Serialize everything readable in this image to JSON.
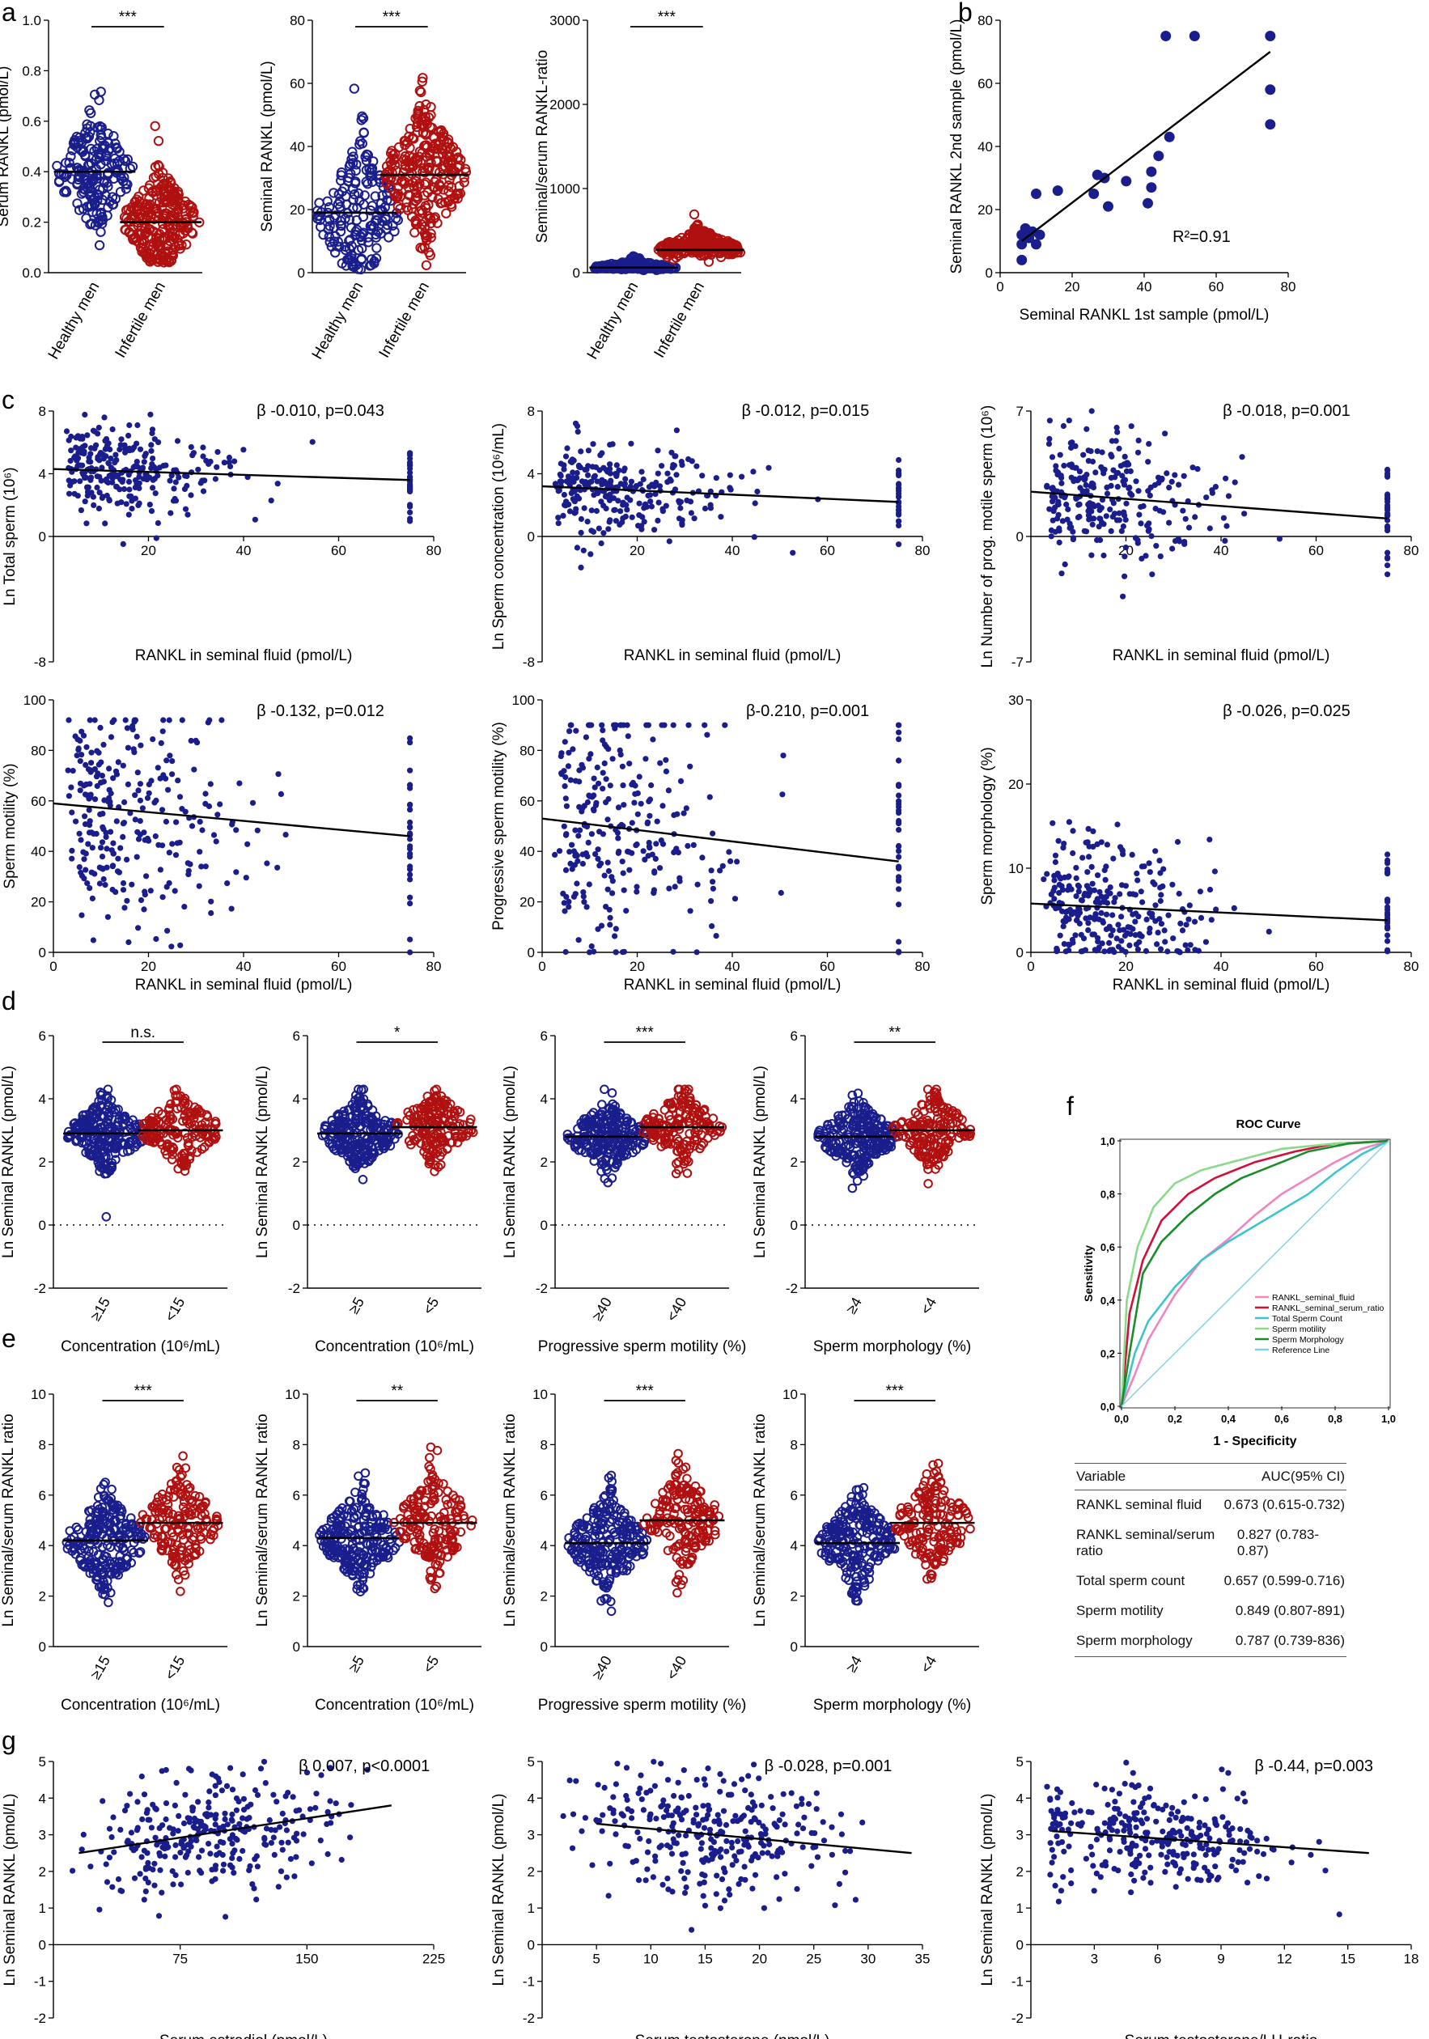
{
  "colors": {
    "healthy": "#1a1e8c",
    "infertile": "#b01010",
    "fit": "#000000",
    "roc": [
      "#ee86c0",
      "#d0103a",
      "#3cc6cc",
      "#8ad98c",
      "#1a8c2a",
      "#7fd0e0"
    ]
  },
  "panel_labels": [
    "a",
    "b",
    "c",
    "d",
    "e",
    "f",
    "g"
  ],
  "chart_data": [
    {
      "id": "a1",
      "type": "scatter",
      "subtype": "dot-plot",
      "ylabel": "Serum RANKL (pmol/L)",
      "ylim": [
        0,
        1
      ],
      "yticks": [
        "0.0",
        "0.2",
        "0.4",
        "0.6",
        "0.8",
        "1.0"
      ],
      "categories": [
        "Healthy men",
        "Infertile men"
      ],
      "medians": [
        0.4,
        0.2
      ],
      "significance": "***",
      "n": [
        190,
        250
      ]
    },
    {
      "id": "a2",
      "type": "scatter",
      "subtype": "dot-plot",
      "ylabel": "Seminal RANKL (pmol/L)",
      "ylim": [
        0,
        80
      ],
      "yticks": [
        "0",
        "20",
        "40",
        "60",
        "80"
      ],
      "categories": [
        "Healthy men",
        "Infertile men"
      ],
      "medians": [
        19,
        31
      ],
      "significance": "***",
      "n": [
        190,
        250
      ]
    },
    {
      "id": "a3",
      "type": "scatter",
      "subtype": "dot-plot",
      "ylabel": "Seminal/serum RANKL-ratio",
      "ylim": [
        0,
        3000
      ],
      "yticks": [
        "0",
        "1000",
        "2000",
        "3000"
      ],
      "categories": [
        "Healthy men",
        "Infertile men"
      ],
      "medians": [
        60,
        270
      ],
      "significance": "***",
      "n": [
        190,
        250
      ]
    },
    {
      "id": "b",
      "type": "scatter",
      "xlabel": "Seminal RANKL 1st sample (pmol/L)",
      "ylabel": "Seminal RANKL 2nd sample (pmol/L)",
      "xlim": [
        0,
        80
      ],
      "ylim": [
        0,
        80
      ],
      "xticks": [
        "0",
        "20",
        "40",
        "60",
        "80"
      ],
      "yticks": [
        "0",
        "20",
        "40",
        "60",
        "80"
      ],
      "annotation": "R²=0.91",
      "fit": [
        [
          6,
          10
        ],
        [
          75,
          70
        ]
      ],
      "points": [
        [
          6,
          4
        ],
        [
          6,
          9
        ],
        [
          6,
          12
        ],
        [
          7,
          14
        ],
        [
          8,
          11
        ],
        [
          9,
          13
        ],
        [
          10,
          9
        ],
        [
          10,
          25
        ],
        [
          11,
          12
        ],
        [
          16,
          26
        ],
        [
          26,
          25
        ],
        [
          27,
          31
        ],
        [
          29,
          30
        ],
        [
          30,
          21
        ],
        [
          35,
          29
        ],
        [
          41,
          22
        ],
        [
          42,
          27
        ],
        [
          42,
          32
        ],
        [
          44,
          37
        ],
        [
          46,
          75
        ],
        [
          47,
          43
        ],
        [
          54,
          75
        ],
        [
          75,
          75
        ],
        [
          75,
          58
        ],
        [
          75,
          47
        ]
      ]
    },
    {
      "id": "c1",
      "type": "scatter",
      "xlabel": "RANKL in seminal fluid (pmol/L)",
      "ylabel": "Ln Total sperm (10⁶)",
      "xlim": [
        0,
        80
      ],
      "ylim": [
        -8,
        8
      ],
      "xticks": [
        "20",
        "40",
        "60",
        "80"
      ],
      "yticks": [
        "-8",
        "0",
        "4",
        "8"
      ],
      "annotation": "β -0.010, p=0.043",
      "fit": [
        [
          0,
          4.3
        ],
        [
          75,
          3.6
        ]
      ],
      "center": 4.5,
      "spread": 1.4,
      "n": 300
    },
    {
      "id": "c2",
      "type": "scatter",
      "xlabel": "RANKL in seminal fluid (pmol/L)",
      "ylabel": "Ln Sperm concentration (10⁶/mL)",
      "xlim": [
        0,
        80
      ],
      "ylim": [
        -8,
        8
      ],
      "xticks": [
        "20",
        "40",
        "60",
        "80"
      ],
      "yticks": [
        "-8",
        "0",
        "4",
        "8"
      ],
      "annotation": "β -0.012, p=0.015",
      "fit": [
        [
          0,
          3.2
        ],
        [
          75,
          2.2
        ]
      ],
      "center": 3.0,
      "spread": 1.5,
      "n": 300
    },
    {
      "id": "c3",
      "type": "scatter",
      "xlabel": "RANKL in seminal fluid (pmol/L)",
      "ylabel": "Ln Number of prog. motile sperm (10⁶)",
      "xlim": [
        0,
        80
      ],
      "ylim": [
        -7,
        7
      ],
      "xticks": [
        "20",
        "40",
        "60",
        "80"
      ],
      "yticks": [
        "-7",
        "0",
        "7"
      ],
      "annotation": "β -0.018, p=0.001",
      "fit": [
        [
          0,
          2.5
        ],
        [
          75,
          1.0
        ]
      ],
      "center": 2.2,
      "spread": 1.8,
      "n": 300
    },
    {
      "id": "c4",
      "type": "scatter",
      "xlabel": "RANKL in seminal fluid (pmol/L)",
      "ylabel": "Sperm motility (%)",
      "xlim": [
        0,
        80
      ],
      "ylim": [
        0,
        100
      ],
      "xticks": [
        "0",
        "20",
        "40",
        "60",
        "80"
      ],
      "yticks": [
        "0",
        "20",
        "40",
        "60",
        "80",
        "100"
      ],
      "annotation": "β -0.132, p=0.012",
      "fit": [
        [
          0,
          59
        ],
        [
          75,
          46
        ]
      ],
      "center": 55,
      "spread": 22,
      "n": 300
    },
    {
      "id": "c5",
      "type": "scatter",
      "xlabel": "RANKL in seminal fluid (pmol/L)",
      "ylabel": "Progressive sperm motility (%)",
      "xlim": [
        0,
        80
      ],
      "ylim": [
        0,
        100
      ],
      "xticks": [
        "0",
        "20",
        "40",
        "60",
        "80"
      ],
      "yticks": [
        "0",
        "20",
        "40",
        "60",
        "80",
        "100"
      ],
      "annotation": "β-0.210, p=0.001",
      "fit": [
        [
          0,
          53
        ],
        [
          75,
          36
        ]
      ],
      "center": 45,
      "spread": 24,
      "n": 300
    },
    {
      "id": "c6",
      "type": "scatter",
      "xlabel": "RANKL in seminal fluid (pmol/L)",
      "ylabel": "Sperm morphology (%)",
      "xlim": [
        0,
        80
      ],
      "ylim": [
        0,
        30
      ],
      "xticks": [
        "0",
        "20",
        "40",
        "60",
        "80"
      ],
      "yticks": [
        "0",
        "10",
        "20",
        "30"
      ],
      "annotation": "β -0.026, p=0.025",
      "fit": [
        [
          0,
          5.8
        ],
        [
          75,
          3.8
        ]
      ],
      "center": 5,
      "spread": 4,
      "n": 300
    },
    {
      "id": "d1",
      "type": "scatter",
      "subtype": "dot-plot",
      "ylabel": "Ln Seminal RANKL (pmol/L)",
      "ylim": [
        -2,
        6
      ],
      "yticks": [
        "-2",
        "0",
        "2",
        "4",
        "6"
      ],
      "categories": [
        "≥15",
        "<15"
      ],
      "xlabel": "Concentration (10⁶/mL)",
      "medians": [
        2.9,
        3.0
      ],
      "significance": "n.s."
    },
    {
      "id": "d2",
      "type": "scatter",
      "subtype": "dot-plot",
      "ylabel": "Ln Seminal RANKL (pmol/L)",
      "ylim": [
        -2,
        6
      ],
      "yticks": [
        "-2",
        "0",
        "2",
        "4",
        "6"
      ],
      "categories": [
        "≥5",
        "<5"
      ],
      "xlabel": "Concentration (10⁶/mL)",
      "medians": [
        2.9,
        3.1
      ],
      "significance": "*"
    },
    {
      "id": "d3",
      "type": "scatter",
      "subtype": "dot-plot",
      "ylabel": "Ln Seminal RANKL (pmol/L)",
      "ylim": [
        -2,
        6
      ],
      "yticks": [
        "-2",
        "0",
        "2",
        "4",
        "6"
      ],
      "categories": [
        "≥40",
        "<40"
      ],
      "xlabel": "Progressive sperm motility (%)",
      "medians": [
        2.8,
        3.1
      ],
      "significance": "***"
    },
    {
      "id": "d4",
      "type": "scatter",
      "subtype": "dot-plot",
      "ylabel": "Ln Seminal RANKL (pmol/L)",
      "ylim": [
        -2,
        6
      ],
      "yticks": [
        "-2",
        "0",
        "2",
        "4",
        "6"
      ],
      "categories": [
        "≥4",
        "<4"
      ],
      "xlabel": "Sperm morphology (%)",
      "medians": [
        2.8,
        3.0
      ],
      "significance": "**"
    },
    {
      "id": "e1",
      "type": "scatter",
      "subtype": "dot-plot",
      "ylabel": "Ln Seminal/serum RANKL ratio",
      "ylim": [
        0,
        10
      ],
      "yticks": [
        "0",
        "2",
        "4",
        "6",
        "8",
        "10"
      ],
      "categories": [
        "≥15",
        "<15"
      ],
      "xlabel": "Concentration (10⁶/mL)",
      "medians": [
        4.2,
        4.9
      ],
      "significance": "***"
    },
    {
      "id": "e2",
      "type": "scatter",
      "subtype": "dot-plot",
      "ylabel": "Ln Seminal/serum RANKL ratio",
      "ylim": [
        0,
        10
      ],
      "yticks": [
        "0",
        "2",
        "4",
        "6",
        "8",
        "10"
      ],
      "categories": [
        "≥5",
        "<5"
      ],
      "xlabel": "Concentration (10⁶/mL)",
      "medians": [
        4.3,
        4.9
      ],
      "significance": "**"
    },
    {
      "id": "e3",
      "type": "scatter",
      "subtype": "dot-plot",
      "ylabel": "Ln Seminal/serum RANKL ratio",
      "ylim": [
        0,
        10
      ],
      "yticks": [
        "0",
        "2",
        "4",
        "6",
        "8",
        "10"
      ],
      "categories": [
        "≥40",
        "<40"
      ],
      "xlabel": "Progressive sperm motility (%)",
      "medians": [
        4.1,
        5.0
      ],
      "significance": "***"
    },
    {
      "id": "e4",
      "type": "scatter",
      "subtype": "dot-plot",
      "ylabel": "Ln Seminal/serum RANKL ratio",
      "ylim": [
        0,
        10
      ],
      "yticks": [
        "0",
        "2",
        "4",
        "6",
        "8",
        "10"
      ],
      "categories": [
        "≥4",
        "<4"
      ],
      "xlabel": "Sperm morphology (%)",
      "medians": [
        4.1,
        4.9
      ],
      "significance": "***"
    },
    {
      "id": "f",
      "type": "line",
      "title": "ROC Curve",
      "xlabel": "1 - Specificity",
      "ylabel": "Sensitivity",
      "xticks": [
        "0,0",
        "0,2",
        "0,4",
        "0,6",
        "0,8",
        "1,0"
      ],
      "yticks": [
        "0,0",
        "0,2",
        "0,4",
        "0,6",
        "0,8",
        "1,0"
      ],
      "series": [
        {
          "name": "RANKL_seminal_fluid",
          "points": [
            [
              0,
              0
            ],
            [
              0.05,
              0.12
            ],
            [
              0.1,
              0.25
            ],
            [
              0.2,
              0.42
            ],
            [
              0.3,
              0.55
            ],
            [
              0.4,
              0.63
            ],
            [
              0.5,
              0.72
            ],
            [
              0.6,
              0.8
            ],
            [
              0.7,
              0.86
            ],
            [
              0.8,
              0.92
            ],
            [
              0.9,
              0.97
            ],
            [
              1,
              1
            ]
          ]
        },
        {
          "name": "RANKL_seminal_serum_ratio",
          "points": [
            [
              0,
              0
            ],
            [
              0.03,
              0.35
            ],
            [
              0.08,
              0.55
            ],
            [
              0.15,
              0.7
            ],
            [
              0.25,
              0.8
            ],
            [
              0.35,
              0.86
            ],
            [
              0.5,
              0.92
            ],
            [
              0.65,
              0.96
            ],
            [
              0.8,
              0.99
            ],
            [
              1,
              1
            ]
          ]
        },
        {
          "name": "Total Sperm Count",
          "points": [
            [
              0,
              0
            ],
            [
              0.05,
              0.2
            ],
            [
              0.1,
              0.32
            ],
            [
              0.2,
              0.45
            ],
            [
              0.3,
              0.55
            ],
            [
              0.4,
              0.62
            ],
            [
              0.5,
              0.68
            ],
            [
              0.6,
              0.74
            ],
            [
              0.7,
              0.8
            ],
            [
              0.8,
              0.88
            ],
            [
              0.9,
              0.95
            ],
            [
              1,
              1
            ]
          ]
        },
        {
          "name": "Sperm motility",
          "points": [
            [
              0,
              0
            ],
            [
              0.02,
              0.4
            ],
            [
              0.06,
              0.6
            ],
            [
              0.12,
              0.75
            ],
            [
              0.2,
              0.84
            ],
            [
              0.3,
              0.89
            ],
            [
              0.45,
              0.93
            ],
            [
              0.6,
              0.97
            ],
            [
              0.8,
              0.99
            ],
            [
              1,
              1
            ]
          ]
        },
        {
          "name": "Sperm Morphology",
          "points": [
            [
              0,
              0
            ],
            [
              0.03,
              0.2
            ],
            [
              0.08,
              0.5
            ],
            [
              0.15,
              0.62
            ],
            [
              0.25,
              0.72
            ],
            [
              0.35,
              0.8
            ],
            [
              0.45,
              0.86
            ],
            [
              0.55,
              0.9
            ],
            [
              0.7,
              0.96
            ],
            [
              0.85,
              0.99
            ],
            [
              1,
              1
            ]
          ]
        },
        {
          "name": "Reference Line",
          "points": [
            [
              0,
              0
            ],
            [
              1,
              1
            ]
          ]
        }
      ],
      "table": {
        "header": [
          "Variable",
          "AUC(95% CI)"
        ],
        "rows": [
          [
            "RANKL seminal fluid",
            "0.673 (0.615-0.732)"
          ],
          [
            "RANKL seminal/serum ratio",
            "0.827 (0.783-0.87)"
          ],
          [
            "Total sperm count",
            "0.657 (0.599-0.716)"
          ],
          [
            "Sperm motility",
            "0.849 (0.807-891)"
          ],
          [
            "Sperm morphology",
            "0.787 (0.739-836)"
          ]
        ]
      }
    },
    {
      "id": "g1",
      "type": "scatter",
      "xlabel": "Serum estradiol (pmol/L)",
      "ylabel": "Ln Seminal RANKL (pmol/L)",
      "xlim": [
        0,
        225
      ],
      "ylim": [
        -2,
        5
      ],
      "xticks": [
        "75",
        "150",
        "225"
      ],
      "yticks": [
        "-2",
        "-1",
        "0",
        "1",
        "2",
        "3",
        "4",
        "5"
      ],
      "annotation": "β 0.007, p<0.0001",
      "fit": [
        [
          15,
          2.5
        ],
        [
          200,
          3.8
        ]
      ],
      "center": 2.9,
      "spread": 0.8,
      "n": 300
    },
    {
      "id": "g2",
      "type": "scatter",
      "xlabel": "Serum testosterone (nmol/L)",
      "ylabel": "Ln Seminal RANKL (pmol/L)",
      "xlim": [
        0,
        35
      ],
      "ylim": [
        -2,
        5
      ],
      "xticks": [
        "5",
        "10",
        "15",
        "20",
        "25",
        "30",
        "35"
      ],
      "yticks": [
        "-2",
        "-1",
        "0",
        "1",
        "2",
        "3",
        "4",
        "5"
      ],
      "annotation": "β -0.028, p=0.001",
      "fit": [
        [
          5,
          3.3
        ],
        [
          34,
          2.5
        ]
      ],
      "center": 2.9,
      "spread": 0.8,
      "n": 300
    },
    {
      "id": "g3",
      "type": "scatter",
      "xlabel": "Serum testosterone/LH-ratio",
      "ylabel": "Ln Seminal RANKL (pmol/L)",
      "xlim": [
        0,
        18
      ],
      "ylim": [
        -2,
        5
      ],
      "xticks": [
        "3",
        "6",
        "9",
        "12",
        "15",
        "18"
      ],
      "yticks": [
        "-2",
        "-1",
        "0",
        "1",
        "2",
        "3",
        "4",
        "5"
      ],
      "annotation": "β -0.44, p=0.003",
      "fit": [
        [
          1,
          3.1
        ],
        [
          16,
          2.5
        ]
      ],
      "center": 2.9,
      "spread": 0.8,
      "n": 300
    }
  ]
}
